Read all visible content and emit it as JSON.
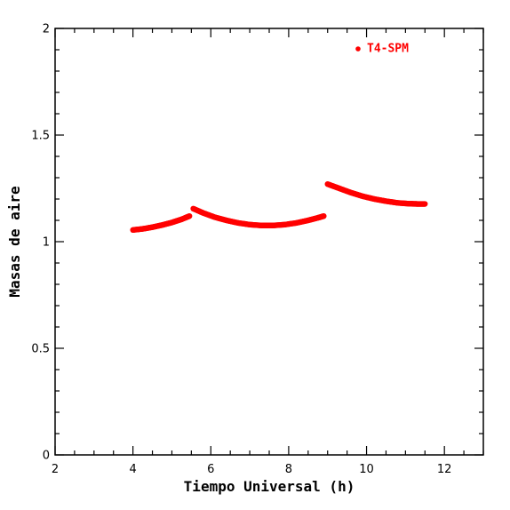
{
  "chart_data": {
    "type": "scatter",
    "xlabel": "Tiempo Universal (h)",
    "ylabel": "Masas de aire",
    "xlim": [
      2,
      13
    ],
    "ylim": [
      0,
      2
    ],
    "x_ticks": [
      "2",
      "4",
      "6",
      "8",
      "10",
      "12"
    ],
    "y_ticks": [
      "0",
      "0.5",
      "1",
      "1.5",
      "2"
    ],
    "grid": false,
    "legend_position": "top-right",
    "series": [
      {
        "name": "T4-SPM",
        "color": "#ff0000",
        "segments": [
          {
            "x": [
              4.0,
              4.25,
              4.5,
              4.75,
              5.0,
              5.25,
              5.45
            ],
            "y": [
              1.055,
              1.06,
              1.068,
              1.078,
              1.09,
              1.105,
              1.12
            ]
          },
          {
            "x": [
              5.55,
              5.8,
              6.1,
              6.4,
              6.7,
              7.0,
              7.3,
              7.6,
              7.9,
              8.2,
              8.5,
              8.75,
              8.9
            ],
            "y": [
              1.155,
              1.135,
              1.115,
              1.1,
              1.088,
              1.08,
              1.076,
              1.076,
              1.08,
              1.088,
              1.1,
              1.112,
              1.12
            ]
          },
          {
            "x": [
              9.0,
              9.3,
              9.6,
              9.9,
              10.2,
              10.5,
              10.8,
              11.1,
              11.3,
              11.5
            ],
            "y": [
              1.27,
              1.25,
              1.23,
              1.213,
              1.2,
              1.19,
              1.182,
              1.178,
              1.177,
              1.177
            ]
          }
        ]
      }
    ]
  }
}
